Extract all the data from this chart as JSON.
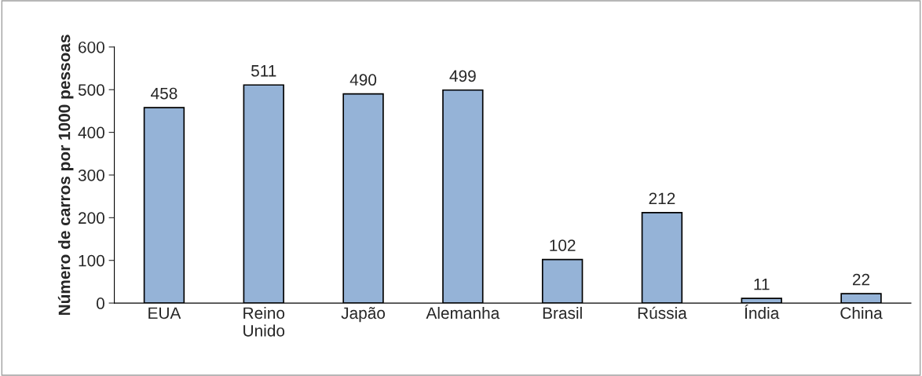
{
  "chart_data": {
    "type": "bar",
    "ylabel": "Número de carros por 1000 pessoas",
    "categories": [
      "EUA",
      "Reino\nUnido",
      "Japão",
      "Alemanha",
      "Brasil",
      "Rússia",
      "Índia",
      "China"
    ],
    "values": [
      458,
      511,
      490,
      499,
      102,
      212,
      11,
      22
    ],
    "color": "#95b3d7",
    "ylim": [
      0,
      600
    ],
    "yticks": [
      0,
      100,
      200,
      300,
      400,
      500,
      600
    ],
    "data_labels": true,
    "grid": false,
    "legend": false
  }
}
